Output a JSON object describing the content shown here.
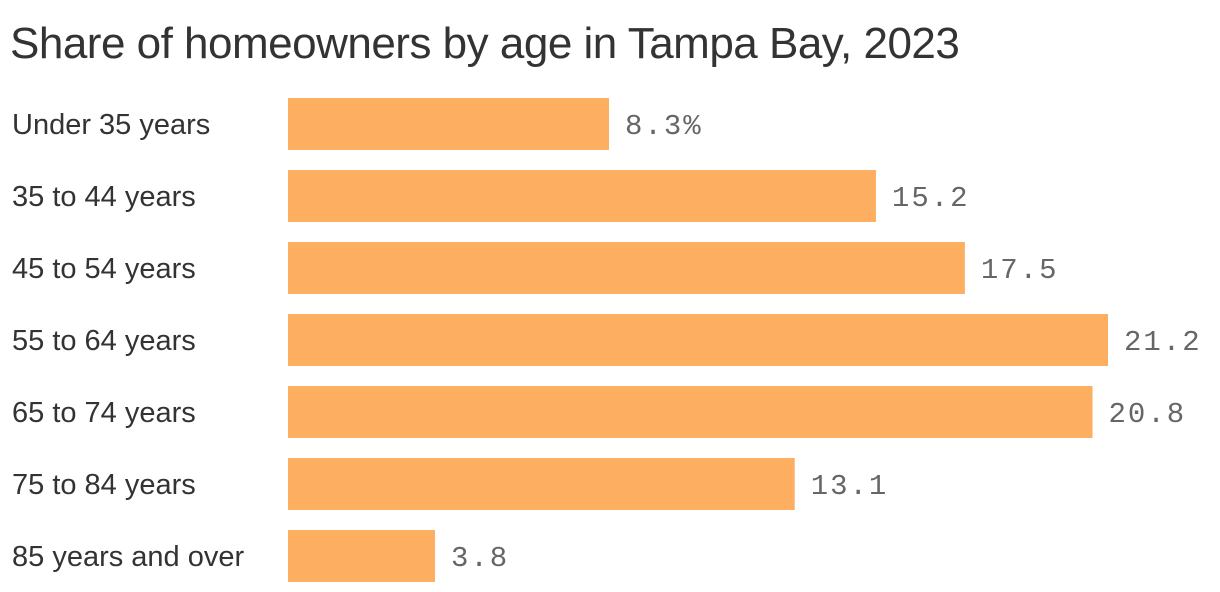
{
  "chart_data": {
    "type": "bar",
    "orientation": "horizontal",
    "title": "Share of homeowners by age in Tampa Bay, 2023",
    "categories": [
      "Under 35 years",
      "35 to 44 years",
      "45 to 54 years",
      "55 to 64 years",
      "65 to 74 years",
      "75 to 84 years",
      "85 years and over"
    ],
    "values": [
      8.3,
      15.2,
      17.5,
      21.2,
      20.8,
      13.1,
      3.8
    ],
    "value_labels": [
      "8.3%",
      "15.2",
      "17.5",
      "21.2",
      "20.8",
      "13.1",
      "3.8"
    ],
    "xlim": [
      0,
      21.2
    ],
    "grid": false,
    "legend": "none",
    "bar_color": "#fdae61",
    "value_label_color": "#666666",
    "text_color": "#333333"
  }
}
